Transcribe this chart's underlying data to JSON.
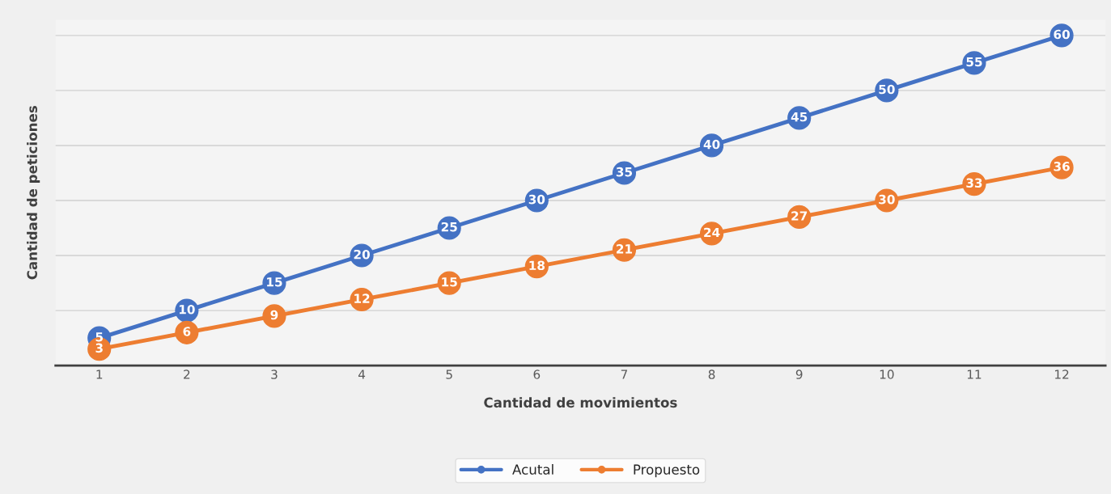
{
  "chart_data": {
    "type": "line",
    "xlabel": "Cantidad de movimientos",
    "ylabel": "Cantidad de peticiones",
    "categories": [
      "1",
      "2",
      "3",
      "4",
      "5",
      "6",
      "7",
      "8",
      "9",
      "10",
      "11",
      "12"
    ],
    "series": [
      {
        "name": "Acutal",
        "color": "#4472c4",
        "values": [
          5,
          10,
          15,
          20,
          25,
          30,
          35,
          40,
          45,
          50,
          55,
          60
        ]
      },
      {
        "name": "Propuesto",
        "color": "#ed7d31",
        "values": [
          3,
          6,
          9,
          12,
          15,
          18,
          21,
          24,
          27,
          30,
          33,
          36
        ]
      }
    ],
    "tick_labels": "x",
    "grid": "y",
    "legend": "bottom",
    "marker": "circle",
    "line_style": "solid",
    "data_labels": true
  }
}
